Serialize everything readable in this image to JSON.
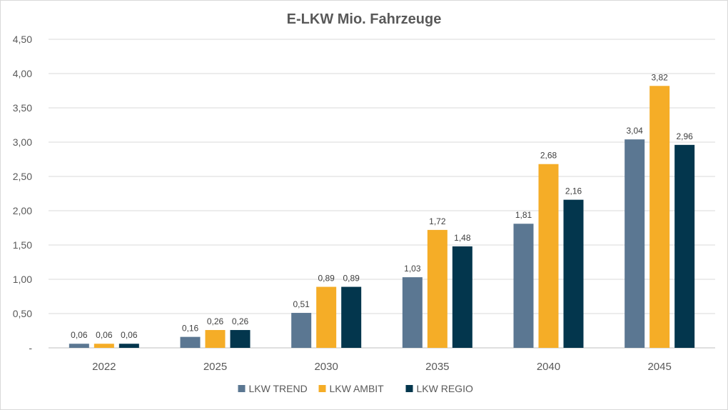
{
  "chart_data": {
    "type": "bar",
    "title": "E-LKW Mio. Fahrzeuge",
    "xlabel": "",
    "ylabel": "",
    "categories": [
      "2022",
      "2025",
      "2030",
      "2035",
      "2040",
      "2045"
    ],
    "ylim": [
      0,
      4.5
    ],
    "yticks": [
      0,
      0.5,
      1.0,
      1.5,
      2.0,
      2.5,
      3.0,
      3.5,
      4.0,
      4.5
    ],
    "ytick_labels": [
      "-",
      "0,50",
      "1,00",
      "1,50",
      "2,00",
      "2,50",
      "3,00",
      "3,50",
      "4,00",
      "4,50"
    ],
    "grid": true,
    "legend_position": "bottom",
    "series": [
      {
        "name": "LKW TREND",
        "color": "#5b7792",
        "values": [
          0.06,
          0.16,
          0.51,
          1.03,
          1.81,
          3.04
        ],
        "labels": [
          "0,06",
          "0,16",
          "0,51",
          "1,03",
          "1,81",
          "3,04"
        ]
      },
      {
        "name": "LKW AMBIT",
        "color": "#f5ad27",
        "values": [
          0.06,
          0.26,
          0.89,
          1.72,
          2.68,
          3.82
        ],
        "labels": [
          "0,06",
          "0,26",
          "0,89",
          "1,72",
          "2,68",
          "3,82"
        ]
      },
      {
        "name": "LKW REGIO",
        "color": "#03364d",
        "values": [
          0.06,
          0.26,
          0.89,
          1.48,
          2.16,
          2.96
        ],
        "labels": [
          "0,06",
          "0,26",
          "0,89",
          "1,48",
          "2,16",
          "2,96"
        ]
      }
    ]
  }
}
